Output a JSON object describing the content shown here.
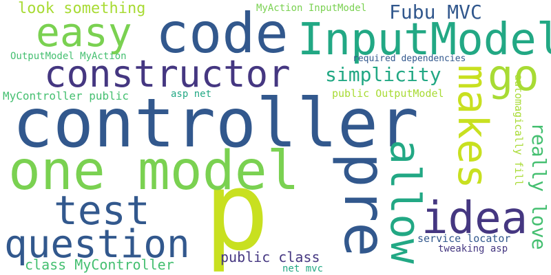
{
  "colors": {
    "background": "#ffffff",
    "dark_blue": "#32588d",
    "navy_purple": "#453781",
    "teal_green": "#22a884",
    "green": "#44bf70",
    "light_green": "#7ad151",
    "lime": "#a8db34",
    "yellow": "#c8e020"
  },
  "words": {
    "p": "p",
    "controller": "controller",
    "code": "code",
    "one_model": "one model",
    "inputmodel": "InputModel",
    "constructor": "constructor",
    "easy": "easy",
    "question": "question",
    "test": "test",
    "pre": "pre",
    "idea": "idea",
    "allow": "allow",
    "makes": "makes",
    "go": "go",
    "fubu_mvc": "Fubu MVC",
    "simplicity": "simplicity",
    "really_love": "really love",
    "look_something": "look something",
    "myaction_inputmodel": "MyAction InputModel",
    "outputmodel_myaction": "OutputModel MyAction",
    "required_dependencies": "required dependencies",
    "mycontroller_public": "MyController public",
    "asp_net": "asp net",
    "public_outputmodel": "public OutputModel",
    "automagically_fill": "automagically fill",
    "public_class": "public class",
    "class_mycontroller": "class MyController",
    "service_locator": "service locator",
    "tweaking_asp": "tweaking asp",
    "net_mvc": "net mvc"
  }
}
